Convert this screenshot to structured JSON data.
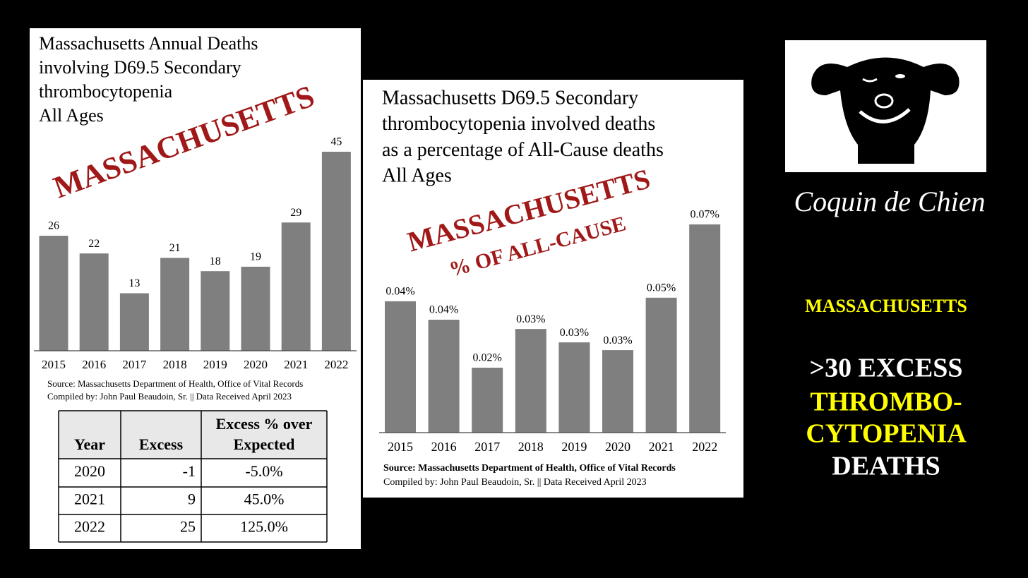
{
  "chart_data": [
    {
      "type": "bar",
      "title": [
        "Massachusetts Annual Deaths",
        "involving D69.5 Secondary",
        "thrombocytopenia",
        "All Ages"
      ],
      "watermark": [
        "MASSACHUSETTS"
      ],
      "categories": [
        "2015",
        "2016",
        "2017",
        "2018",
        "2019",
        "2020",
        "2021",
        "2022"
      ],
      "values": [
        26,
        22,
        13,
        21,
        18,
        19,
        29,
        45
      ],
      "color": "#7f7f7f",
      "source": [
        "Source:  Massachusetts Department of Health, Office of Vital Records",
        "Compiled by:  John Paul Beaudoin, Sr. || Data Received April 2023"
      ]
    },
    {
      "type": "bar",
      "title": [
        "Massachusetts D69.5 Secondary",
        "thrombocytopenia involved deaths",
        "as a percentage of All-Cause deaths",
        "All Ages"
      ],
      "watermark": [
        "MASSACHUSETTS",
        "% OF ALL-CAUSE"
      ],
      "categories": [
        "2015",
        "2016",
        "2017",
        "2018",
        "2019",
        "2020",
        "2021",
        "2022"
      ],
      "values": [
        0.0441,
        0.0379,
        0.0218,
        0.0348,
        0.0303,
        0.0277,
        0.0453,
        0.0699
      ],
      "value_labels": [
        "0.04%",
        "0.04%",
        "0.02%",
        "0.03%",
        "0.03%",
        "0.03%",
        "0.05%",
        "0.07%"
      ],
      "color": "#7f7f7f",
      "source": [
        "Source:  Massachusetts Department of Health, Office of Vital Records",
        "Compiled by:  John Paul Beaudoin, Sr. || Data Received April 2023"
      ]
    }
  ],
  "table": {
    "header": [
      "Year",
      "Excess",
      [
        "Excess % over",
        "Expected"
      ]
    ],
    "rows": [
      [
        "2020",
        "-1",
        "-5.0%"
      ],
      [
        "2021",
        "9",
        "45.0%"
      ],
      [
        "2022",
        "25",
        "125.0%"
      ]
    ]
  },
  "logo": {
    "name": "Coquin de Chien"
  },
  "sidebar": [
    {
      "text": "MASSACHUSETTS",
      "color": "#ffff00"
    },
    {
      "text": ">30 EXCESS",
      "color": "#ffffff"
    },
    {
      "text": "THROMBO-",
      "color": "#ffff00"
    },
    {
      "text": "CYTOPENIA",
      "color": "#ffff00"
    },
    {
      "text": "DEATHS",
      "color": "#ffffff"
    }
  ]
}
